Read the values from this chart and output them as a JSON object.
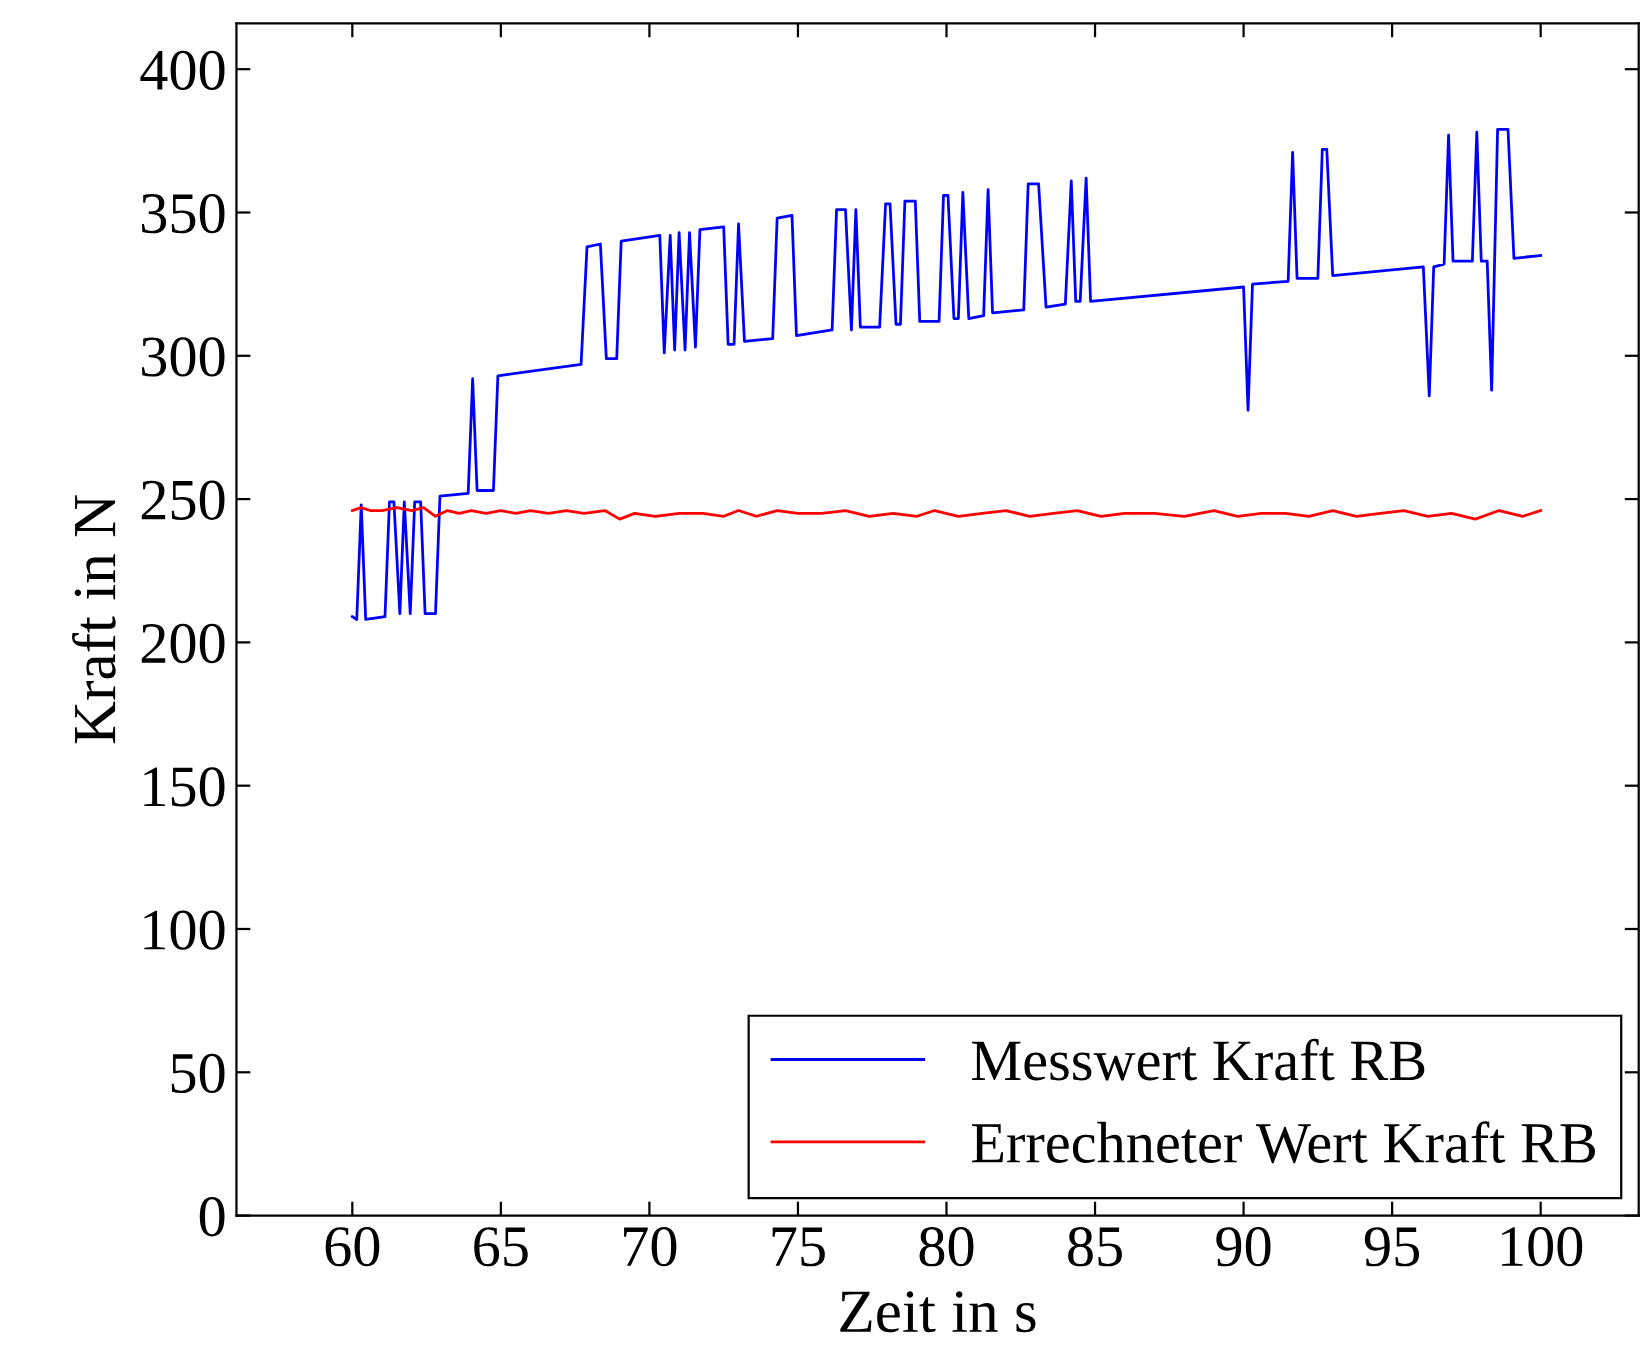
{
  "chart_data": {
    "type": "line",
    "xlabel": "Zeit in s",
    "ylabel": "Kraft in N",
    "xlim": [
      56.1,
      103.3
    ],
    "ylim": [
      0,
      416
    ],
    "xticks": [
      60,
      65,
      70,
      75,
      80,
      85,
      90,
      95,
      100
    ],
    "yticks": [
      0,
      50,
      100,
      150,
      200,
      250,
      300,
      350,
      400
    ],
    "grid": false,
    "legend": "bottom right",
    "marker": "none",
    "line_style": "solid",
    "series": [
      {
        "name": "Messwert Kraft RB",
        "color": "#0000ff",
        "x": [
          60.0,
          60.15,
          60.3,
          60.45,
          61.1,
          61.25,
          61.4,
          61.6,
          61.75,
          61.95,
          62.1,
          62.3,
          62.45,
          62.8,
          62.95,
          63.9,
          64.05,
          64.2,
          64.75,
          64.9,
          67.7,
          67.9,
          68.35,
          68.55,
          68.9,
          69.05,
          70.35,
          70.5,
          70.7,
          70.85,
          71.0,
          71.2,
          71.35,
          71.55,
          71.7,
          72.5,
          72.65,
          72.85,
          73.0,
          73.2,
          74.15,
          74.3,
          74.8,
          74.95,
          76.15,
          76.3,
          76.6,
          76.8,
          76.95,
          77.1,
          77.75,
          77.95,
          78.1,
          78.3,
          78.45,
          78.6,
          78.95,
          79.1,
          79.75,
          79.9,
          80.05,
          80.25,
          80.4,
          80.55,
          80.75,
          81.25,
          81.4,
          81.55,
          82.6,
          82.75,
          82.9,
          83.1,
          83.35,
          84.0,
          84.2,
          84.35,
          84.5,
          84.7,
          84.85,
          90.0,
          90.15,
          90.3,
          91.5,
          91.65,
          91.8,
          92.5,
          92.65,
          92.8,
          93.0,
          96.05,
          96.25,
          96.4,
          96.75,
          96.9,
          97.05,
          97.7,
          97.85,
          98.0,
          98.2,
          98.35,
          98.55,
          98.9,
          99.1,
          100.0
        ],
        "values": [
          209,
          208,
          248,
          208,
          209,
          249,
          249,
          210,
          249,
          210,
          249,
          249,
          210,
          210,
          251,
          252,
          292,
          253,
          253,
          293,
          297,
          338,
          339,
          299,
          299,
          340,
          342,
          301,
          342,
          302,
          343,
          302,
          343,
          303,
          344,
          345,
          304,
          304,
          346,
          305,
          306,
          348,
          349,
          307,
          309,
          351,
          351,
          309,
          351,
          310,
          310,
          353,
          353,
          311,
          311,
          354,
          354,
          312,
          312,
          356,
          356,
          313,
          313,
          357,
          313,
          314,
          358,
          315,
          316,
          360,
          360,
          360,
          317,
          318,
          361,
          319,
          319,
          362,
          319,
          324,
          281,
          325,
          326,
          371,
          327,
          327,
          372,
          372,
          328,
          331,
          286,
          331,
          332,
          377,
          333,
          333,
          378,
          333,
          333,
          288,
          379,
          379,
          334,
          335
        ]
      },
      {
        "name": "Errechneter Wert Kraft RB",
        "color": "#ff0000",
        "x": [
          60.0,
          60.3,
          60.6,
          61.0,
          61.5,
          62.0,
          62.4,
          62.8,
          63.2,
          63.6,
          64.0,
          64.5,
          65.0,
          65.5,
          66.0,
          66.6,
          67.2,
          67.8,
          68.5,
          69.0,
          69.5,
          70.2,
          71.0,
          71.8,
          72.5,
          73.0,
          73.6,
          74.3,
          75.0,
          75.8,
          76.6,
          77.4,
          78.2,
          79.0,
          79.6,
          80.4,
          81.2,
          82.0,
          82.8,
          83.6,
          84.4,
          85.2,
          86.0,
          87.0,
          88.0,
          89.0,
          89.8,
          90.6,
          91.4,
          92.2,
          93.0,
          93.8,
          94.6,
          95.4,
          96.2,
          97.0,
          97.8,
          98.6,
          99.4,
          100.0
        ],
        "values": [
          246,
          247,
          246,
          246,
          247,
          246,
          247,
          244,
          246,
          245,
          246,
          245,
          246,
          245,
          246,
          245,
          246,
          245,
          246,
          243,
          245,
          244,
          245,
          245,
          244,
          246,
          244,
          246,
          245,
          245,
          246,
          244,
          245,
          244,
          246,
          244,
          245,
          246,
          244,
          245,
          246,
          244,
          245,
          245,
          244,
          246,
          244,
          245,
          245,
          244,
          246,
          244,
          245,
          246,
          244,
          245,
          243,
          246,
          244,
          246
        ]
      }
    ]
  }
}
